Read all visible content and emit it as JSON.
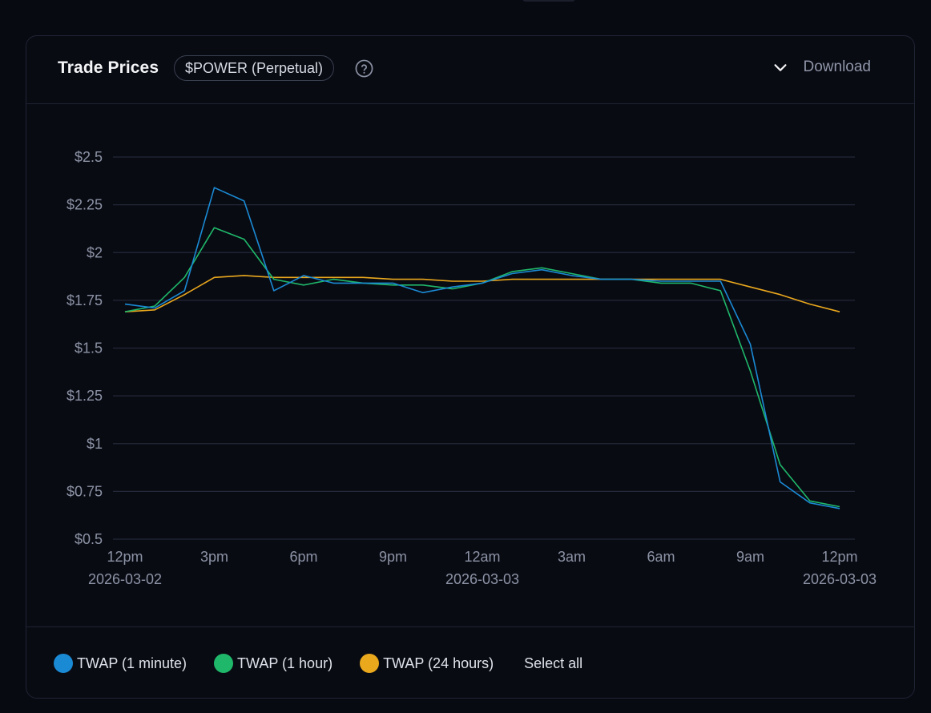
{
  "header": {
    "title": "Trade Prices",
    "market_badge": "$POWER (Perpetual)",
    "help_icon": "question-circle-icon",
    "download_icon": "chevron-down-icon",
    "download_label": "Download"
  },
  "legend": {
    "items": [
      {
        "label": "TWAP (1 minute)",
        "color": "#1a8ad4"
      },
      {
        "label": "TWAP (1 hour)",
        "color": "#1fb86a"
      },
      {
        "label": "TWAP (24 hours)",
        "color": "#eaa81d"
      }
    ],
    "select_all_label": "Select all"
  },
  "chart_data": {
    "type": "line",
    "title": "",
    "xlabel": "",
    "ylabel": "",
    "ylim": [
      0.5,
      2.5
    ],
    "y_ticks": [
      {
        "value": 2.5,
        "label": "$2.5"
      },
      {
        "value": 2.25,
        "label": "$2.25"
      },
      {
        "value": 2.0,
        "label": "$2"
      },
      {
        "value": 1.75,
        "label": "$1.75"
      },
      {
        "value": 1.5,
        "label": "$1.5"
      },
      {
        "value": 1.25,
        "label": "$1.25"
      },
      {
        "value": 1.0,
        "label": "$1"
      },
      {
        "value": 0.75,
        "label": "$0.75"
      },
      {
        "value": 0.5,
        "label": "$0.5"
      }
    ],
    "x_ticks": [
      {
        "hour": 0,
        "label": "12pm",
        "date": "2026-03-02"
      },
      {
        "hour": 3,
        "label": "3pm",
        "date": ""
      },
      {
        "hour": 6,
        "label": "6pm",
        "date": ""
      },
      {
        "hour": 9,
        "label": "9pm",
        "date": ""
      },
      {
        "hour": 12,
        "label": "12am",
        "date": "2026-03-03"
      },
      {
        "hour": 15,
        "label": "3am",
        "date": ""
      },
      {
        "hour": 18,
        "label": "6am",
        "date": ""
      },
      {
        "hour": 21,
        "label": "9am",
        "date": ""
      },
      {
        "hour": 24,
        "label": "12pm",
        "date": "2026-03-03"
      }
    ],
    "x_hours": [
      0,
      1,
      2,
      3,
      4,
      5,
      6,
      7,
      8,
      9,
      10,
      11,
      12,
      13,
      14,
      15,
      16,
      17,
      18,
      19,
      20,
      21,
      22,
      23,
      24
    ],
    "series": [
      {
        "name": "TWAP (1 minute)",
        "color": "#1a8ad4",
        "values": [
          1.73,
          1.71,
          1.8,
          2.34,
          2.27,
          1.8,
          1.88,
          1.84,
          1.84,
          1.84,
          1.79,
          1.82,
          1.84,
          1.89,
          1.91,
          1.88,
          1.86,
          1.86,
          1.85,
          1.85,
          1.85,
          1.52,
          0.8,
          0.69,
          0.66
        ]
      },
      {
        "name": "TWAP (1 hour)",
        "color": "#1fb86a",
        "values": [
          1.69,
          1.72,
          1.87,
          2.13,
          2.07,
          1.86,
          1.83,
          1.86,
          1.84,
          1.83,
          1.83,
          1.81,
          1.84,
          1.9,
          1.92,
          1.89,
          1.86,
          1.86,
          1.84,
          1.84,
          1.8,
          1.38,
          0.89,
          0.7,
          0.67
        ]
      },
      {
        "name": "TWAP (24 hours)",
        "color": "#eaa81d",
        "values": [
          1.69,
          1.7,
          1.78,
          1.87,
          1.88,
          1.87,
          1.87,
          1.87,
          1.87,
          1.86,
          1.86,
          1.85,
          1.85,
          1.86,
          1.86,
          1.86,
          1.86,
          1.86,
          1.86,
          1.86,
          1.86,
          1.82,
          1.78,
          1.73,
          1.69
        ]
      }
    ]
  }
}
